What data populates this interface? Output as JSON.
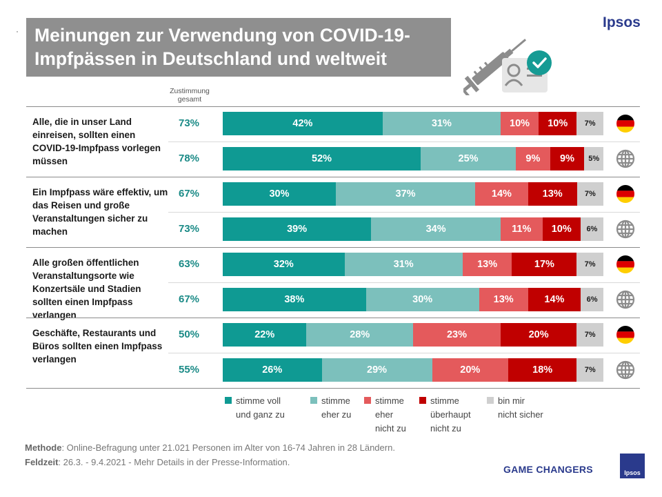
{
  "header": {
    "title": "Meinungen zur Verwendung von COVID-19-Impfpässen in Deutschland und weltweit",
    "brand": "Ipsos",
    "agree_label": "Zustimmung gesamt"
  },
  "chart_data": {
    "type": "bar",
    "orientation": "horizontal",
    "stacked": true,
    "title": "Meinungen zur Verwendung von COVID-19-Impfpässen in Deutschland und weltweit",
    "series_names": [
      "stimme voll und ganz zu",
      "stimme eher zu",
      "stimme eher nicht zu",
      "stimme überhaupt nicht zu",
      "bin mir nicht sicher"
    ],
    "colors": [
      "#0f9a93",
      "#7cc0bc",
      "#e45a5c",
      "#c00000",
      "#cfcfcf"
    ],
    "questions": [
      {
        "text": "Alle, die in unser Land einreisen, sollten einen COVID-19-Impfpass vorlegen müssen",
        "rows": [
          {
            "region": "Deutschland",
            "icon": "germany-flag-icon",
            "total": "73%",
            "values": [
              42,
              31,
              10,
              10,
              7
            ]
          },
          {
            "region": "weltweit",
            "icon": "globe-icon",
            "total": "78%",
            "values": [
              52,
              25,
              9,
              9,
              5
            ]
          }
        ]
      },
      {
        "text": "Ein Impfpass wäre effektiv, um das Reisen und große Veranstaltungen sicher zu machen",
        "rows": [
          {
            "region": "Deutschland",
            "icon": "germany-flag-icon",
            "total": "67%",
            "values": [
              30,
              37,
              14,
              13,
              7
            ]
          },
          {
            "region": "weltweit",
            "icon": "globe-icon",
            "total": "73%",
            "values": [
              39,
              34,
              11,
              10,
              6
            ]
          }
        ]
      },
      {
        "text": "Alle großen öffentlichen Veranstaltungsorte wie Konzertsäle und Stadien sollten einen Impfpass verlangen",
        "rows": [
          {
            "region": "Deutschland",
            "icon": "germany-flag-icon",
            "total": "63%",
            "values": [
              32,
              31,
              13,
              17,
              7
            ]
          },
          {
            "region": "weltweit",
            "icon": "globe-icon",
            "total": "67%",
            "values": [
              38,
              30,
              13,
              14,
              6
            ]
          }
        ]
      },
      {
        "text": "Geschäfte, Restaurants und Büros sollten einen Impfpass verlangen",
        "rows": [
          {
            "region": "Deutschland",
            "icon": "germany-flag-icon",
            "total": "50%",
            "values": [
              22,
              28,
              23,
              20,
              7
            ]
          },
          {
            "region": "weltweit",
            "icon": "globe-icon",
            "total": "55%",
            "values": [
              26,
              29,
              20,
              18,
              7
            ]
          }
        ]
      }
    ],
    "legend": [
      {
        "label": "stimme voll\nund ganz zu",
        "color": "#0f9a93"
      },
      {
        "label": "stimme\neher zu",
        "color": "#7cc0bc"
      },
      {
        "label": "stimme\neher\nnicht zu",
        "color": "#e45a5c"
      },
      {
        "label": "stimme\nüberhaupt\nnicht zu",
        "color": "#c00000"
      },
      {
        "label": "bin mir\nnicht sicher",
        "color": "#cfcfcf"
      }
    ]
  },
  "footer": {
    "method_label": "Methode",
    "method_text": ": Online-Befragung unter 21.021 Personen im Alter von 16-74 Jahren in 28 Ländern.",
    "field_label": "Feldzeit",
    "field_text": ": 26.3. - 9.4.2021 - Mehr Details in der Presse-Information.",
    "tagline": "GAME CHANGERS",
    "logo_text": "Ipsos"
  }
}
